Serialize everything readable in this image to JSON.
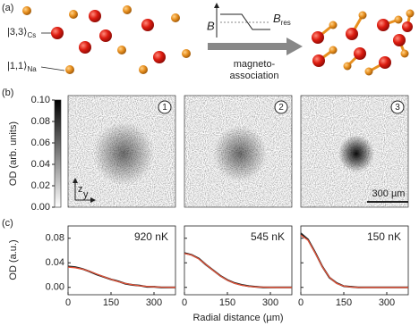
{
  "panel_a": {
    "label": "(a)",
    "cs_state": "|3,3⟩",
    "cs_sub": "Cs",
    "na_state": "|1,1⟩",
    "na_sub": "Na",
    "b_axis": "B",
    "bres": "B",
    "bres_sub": "res",
    "arrow_line1": "magneto-",
    "arrow_line2": "association"
  },
  "panel_b": {
    "label": "(b)",
    "colorbar": {
      "label": "OD (arb. units)",
      "lim": [
        0,
        0.1
      ],
      "ticks": [
        {
          "value": 0,
          "label": "0.00"
        },
        0.02,
        0.04,
        0.06,
        0.08,
        {
          "value": 0.1,
          "label": "0.10"
        }
      ]
    },
    "images": [
      {
        "number": "1"
      },
      {
        "number": "2"
      },
      {
        "number": "3"
      }
    ],
    "axis_z": "z",
    "axis_y": "y",
    "scale_bar": "300 µm"
  },
  "panel_c": {
    "label": "(c)"
  },
  "chart_data": [
    {
      "type": "line",
      "ylabel": "OD (a.u.)",
      "annotation": "920 nK",
      "x": [
        0,
        25,
        50,
        75,
        100,
        125,
        150,
        175,
        200,
        225,
        250,
        275,
        300,
        325,
        350,
        375
      ],
      "xlim": [
        0,
        375
      ],
      "xticks": [
        0,
        150,
        300
      ],
      "ylim": [
        -0.012,
        0.1
      ],
      "yticks": [
        {
          "value": 0,
          "label": "0.00"
        },
        0.04,
        0.08
      ],
      "series": [
        {
          "color": "#222222",
          "values": [
            0.034,
            0.033,
            0.03,
            0.026,
            0.021,
            0.017,
            0.013,
            0.01,
            0.006,
            0.004,
            0.003,
            0.001,
            0.001,
            0,
            0,
            0
          ]
        },
        {
          "color": "#e8553a",
          "values": [
            0.033,
            0.032,
            0.0298,
            0.0262,
            0.0218,
            0.0173,
            0.013,
            0.0093,
            0.0063,
            0.0041,
            0.0025,
            0.0015,
            0.0008,
            0.0004,
            0.0002,
            0.0001
          ]
        }
      ]
    },
    {
      "type": "line",
      "xlabel": "Radial distance (µm)",
      "annotation": "545 nK",
      "x": [
        0,
        25,
        50,
        75,
        100,
        125,
        150,
        175,
        200,
        225,
        250,
        275,
        300,
        325,
        350,
        375
      ],
      "xlim": [
        0,
        375
      ],
      "xticks": [
        0,
        150,
        300
      ],
      "ylim": [
        -0.012,
        0.1
      ],
      "yticks": [
        0,
        0.04,
        0.08
      ],
      "series": [
        {
          "color": "#222222",
          "values": [
            0.056,
            0.053,
            0.047,
            0.037,
            0.028,
            0.019,
            0.012,
            0.007,
            0.004,
            0.002,
            0.001,
            0,
            0,
            0,
            0,
            0
          ]
        },
        {
          "color": "#e8553a",
          "values": [
            0.055,
            0.0527,
            0.0463,
            0.0373,
            0.0275,
            0.0187,
            0.0116,
            0.0066,
            0.0034,
            0.0017,
            0.0007,
            0.0003,
            0.0001,
            0,
            0,
            0
          ]
        }
      ]
    },
    {
      "type": "line",
      "annotation": "150 nK",
      "x": [
        0,
        25,
        50,
        75,
        100,
        125,
        150,
        175,
        200,
        225,
        250,
        275,
        300,
        325,
        350,
        375
      ],
      "xlim": [
        0,
        375
      ],
      "xticks": [
        0,
        150,
        300
      ],
      "ylim": [
        -0.012,
        0.1
      ],
      "yticks": [
        0,
        0.04,
        0.08
      ],
      "series": [
        {
          "color": "#222222",
          "values": [
            0.088,
            0.078,
            0.057,
            0.034,
            0.016,
            0.007,
            0.002,
            0.001,
            0,
            0,
            0,
            0,
            0,
            0,
            0,
            0
          ]
        },
        {
          "color": "#e8553a",
          "values": [
            0.085,
            0.0767,
            0.0562,
            0.0335,
            0.0163,
            0.0064,
            0.0021,
            0.0005,
            0.0001,
            0,
            0,
            0,
            0,
            0,
            0,
            0
          ]
        }
      ]
    }
  ]
}
